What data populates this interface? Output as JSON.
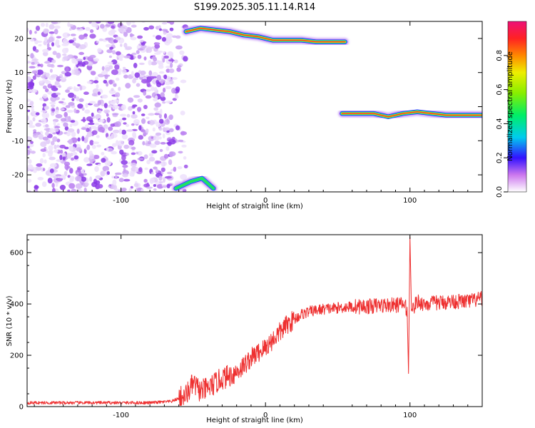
{
  "figure": {
    "title": "S199.2025.305.11.14.R14"
  },
  "chart_data": [
    {
      "type": "heatmap",
      "name": "spectrogram",
      "xlabel": "Height of straight line (km)",
      "ylabel": "Frequency (Hz)",
      "xlim": [
        -165,
        150
      ],
      "ylim": [
        -25,
        25
      ],
      "xticks": [
        -100,
        0,
        100
      ],
      "yticks": [
        -20,
        -10,
        0,
        10,
        20
      ],
      "colorbar": {
        "label": "Normalized spectral amplitude",
        "range": [
          0,
          1
        ],
        "ticks": [
          0.0,
          0.2,
          0.4,
          0.6,
          0.8
        ]
      },
      "features": [
        {
          "description": "noise",
          "x_range": [
            -165,
            -65
          ],
          "y_range": [
            -25,
            25
          ]
        },
        {
          "description": "upper tone",
          "x": [
            -55,
            -45,
            -35,
            -25,
            -15,
            -5,
            5,
            15,
            25,
            35,
            45,
            55
          ],
          "freq": [
            22,
            23,
            22.5,
            22,
            21,
            20.5,
            19.5,
            19.5,
            19.5,
            19,
            19,
            19
          ]
        },
        {
          "description": "lower tone",
          "x": [
            -62,
            -52,
            -44,
            -36
          ],
          "freq": [
            -24,
            -22,
            -21,
            -24
          ]
        },
        {
          "description": "carrier",
          "x": [
            53,
            65,
            75,
            85,
            95,
            105,
            115,
            125,
            135,
            145,
            150
          ],
          "freq": [
            -2,
            -2,
            -2,
            -3,
            -2,
            -1.5,
            -2,
            -2.5,
            -2.5,
            -2.5,
            -2.5
          ]
        }
      ]
    },
    {
      "type": "line",
      "name": "snr",
      "xlabel": "Height of straight line (km)",
      "ylabel": "SNR (10 * v/v)",
      "xlim": [
        -165,
        150
      ],
      "ylim": [
        0,
        670
      ],
      "xticks": [
        -100,
        0,
        100
      ],
      "yticks": [
        0,
        200,
        400,
        600
      ],
      "color": "#ee3030",
      "series": [
        {
          "name": "SNR",
          "x": [
            -165,
            -140,
            -110,
            -80,
            -65,
            -55,
            -50,
            -45,
            -40,
            -35,
            -30,
            -25,
            -20,
            -15,
            -10,
            -5,
            0,
            5,
            10,
            15,
            20,
            25,
            30,
            35,
            40,
            50,
            60,
            70,
            80,
            90,
            95,
            98,
            99,
            100,
            101,
            102,
            105,
            110,
            120,
            130,
            140,
            150
          ],
          "values": [
            15,
            15,
            15,
            15,
            20,
            45,
            90,
            60,
            70,
            90,
            110,
            120,
            135,
            160,
            190,
            210,
            230,
            260,
            290,
            320,
            340,
            360,
            370,
            375,
            380,
            385,
            390,
            390,
            395,
            395,
            400,
            380,
            130,
            660,
            400,
            380,
            410,
            400,
            405,
            410,
            410,
            420
          ]
        }
      ]
    }
  ]
}
